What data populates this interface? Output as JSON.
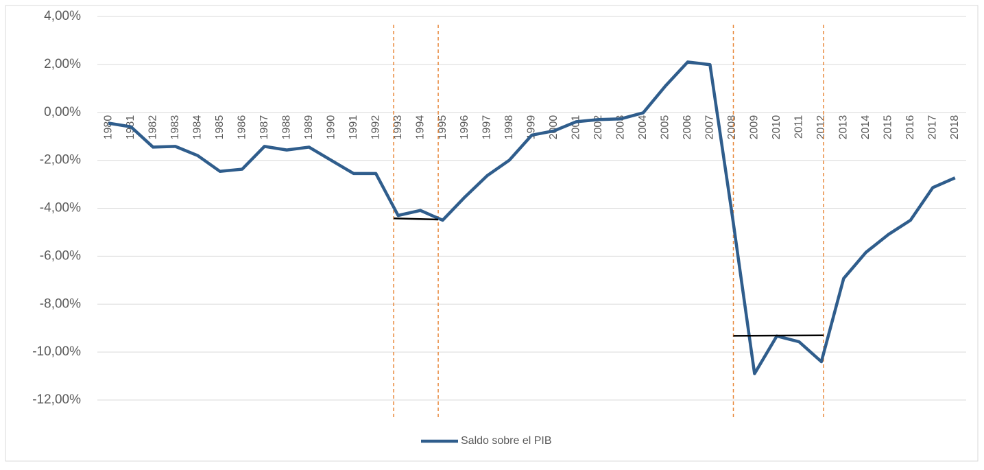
{
  "chart_data": {
    "type": "line",
    "categories": [
      "1980",
      "1981",
      "1982",
      "1983",
      "1984",
      "1985",
      "1986",
      "1987",
      "1988",
      "1989",
      "1990",
      "1991",
      "1992",
      "1993",
      "1994",
      "1995",
      "1996",
      "1997",
      "1998",
      "1999",
      "2000",
      "2001",
      "2002",
      "2003",
      "2004",
      "2005",
      "2006",
      "2007",
      "2008",
      "2009",
      "2010",
      "2011",
      "2012",
      "2013",
      "2014",
      "2015",
      "2016",
      "2017",
      "2018"
    ],
    "series": [
      {
        "name": "Saldo sobre el PIB",
        "color": "#2f5d8c",
        "values": [
          -0.45,
          -0.6,
          -1.45,
          -1.42,
          -1.8,
          -2.46,
          -2.37,
          -1.42,
          -1.57,
          -1.45,
          -2.0,
          -2.55,
          -2.55,
          -4.3,
          -4.09,
          -4.5,
          -3.53,
          -2.64,
          -1.99,
          -0.95,
          -0.77,
          -0.39,
          -0.3,
          -0.27,
          -0.02,
          1.1,
          2.1,
          1.99,
          -4.3,
          -10.9,
          -9.33,
          -9.57,
          -10.4,
          -6.93,
          -5.84,
          -5.1,
          -4.5,
          -3.14,
          -2.73
        ]
      }
    ],
    "ylim": [
      -12.6,
      4
    ],
    "yticks": [
      {
        "value": 4,
        "label": "4,00%"
      },
      {
        "value": 2,
        "label": "2,00%"
      },
      {
        "value": 0,
        "label": "0,00%"
      },
      {
        "value": -2,
        "label": "-2,00%"
      },
      {
        "value": -4,
        "label": "-4,00%"
      },
      {
        "value": -6,
        "label": "-6,00%"
      },
      {
        "value": -8,
        "label": "-8,00%"
      },
      {
        "value": -10,
        "label": "-10,00%"
      },
      {
        "value": -12,
        "label": "-12,00%"
      }
    ],
    "grid": true,
    "legend": "bottom",
    "period_lines": {
      "color": "#e8873a",
      "x": [
        1992.8,
        1994.8,
        2008.05,
        2012.1
      ]
    },
    "average_lines": {
      "color": "#000000",
      "segments": [
        {
          "x": [
            1992.8,
            1994.8
          ],
          "y": [
            -4.42,
            -4.47
          ]
        },
        {
          "x": [
            2008.05,
            2012.1
          ],
          "y": [
            -9.32,
            -9.3
          ]
        }
      ]
    }
  }
}
